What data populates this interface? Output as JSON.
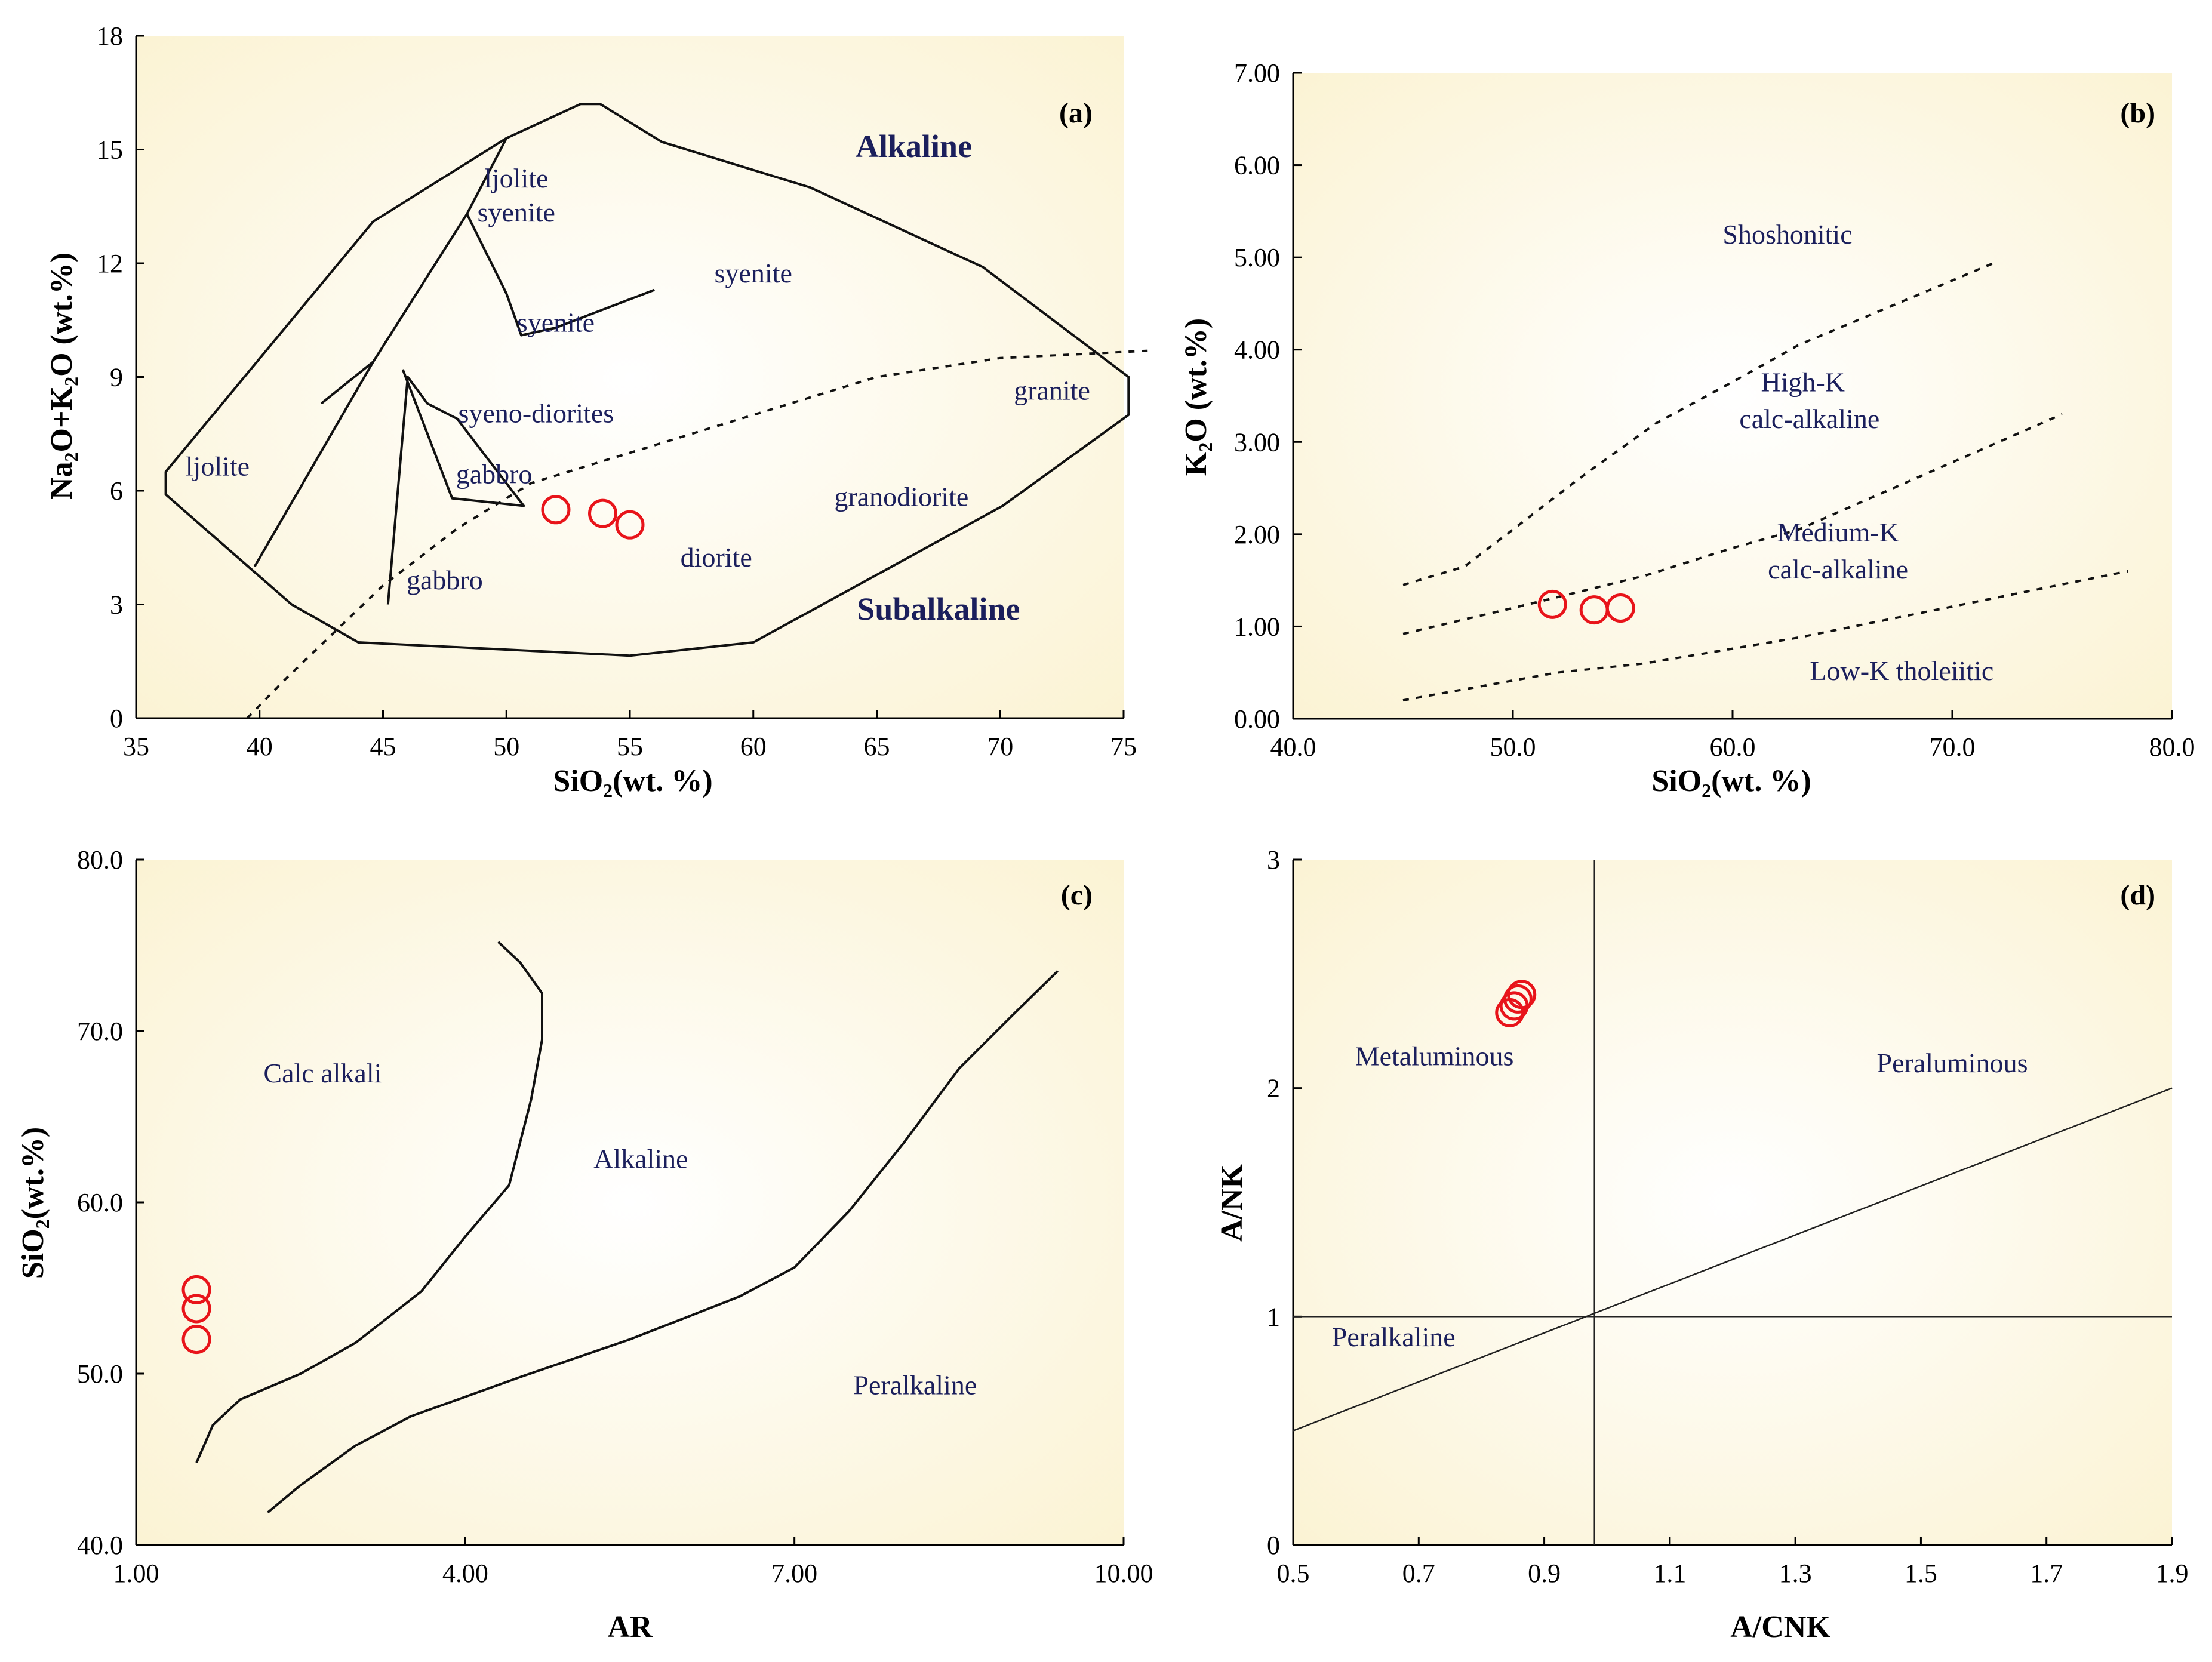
{
  "colors": {
    "plot_bg": "#fbf5dc",
    "plot_center": "#ffffff",
    "sample": "#e8141a",
    "label": "#1b1f5c"
  },
  "chart_data": [
    {
      "id": "a",
      "type": "scatter",
      "panel_label": "(a)",
      "xlabel": "SiO",
      "xlabel_sub": "2",
      "xlabel_suffix": "(wt. %)",
      "ylabel": "Na",
      "ylabel_sub1": "2",
      "ylabel_mid": "O+K",
      "ylabel_sub2": "2",
      "ylabel_suffix": "O (wt.%)",
      "xlim": [
        35,
        75
      ],
      "ylim": [
        0,
        18
      ],
      "xticks": [
        "35",
        "40",
        "45",
        "50",
        "55",
        "60",
        "65",
        "70",
        "75"
      ],
      "yticks": [
        "0",
        "3",
        "6",
        "9",
        "12",
        "15",
        "18"
      ],
      "points": [
        {
          "x": 52.0,
          "y": 5.5
        },
        {
          "x": 53.9,
          "y": 5.4
        },
        {
          "x": 55.0,
          "y": 5.1
        }
      ],
      "fields": [
        {
          "text": "ljolite",
          "x": 38.3,
          "y": 6.4,
          "big": false
        },
        {
          "text": "ljolite",
          "x": 50.4,
          "y": 14.0,
          "big": false
        },
        {
          "text": "syenite",
          "x": 50.4,
          "y": 13.1,
          "big": false
        },
        {
          "text": "syenite",
          "x": 60.0,
          "y": 11.5,
          "big": false
        },
        {
          "text": "syenite",
          "x": 52.0,
          "y": 10.2,
          "big": false
        },
        {
          "text": "syeno-diorites",
          "x": 51.2,
          "y": 7.8,
          "big": false
        },
        {
          "text": "granite",
          "x": 72.1,
          "y": 8.4,
          "big": false
        },
        {
          "text": "gabbro",
          "x": 49.5,
          "y": 6.2,
          "big": false
        },
        {
          "text": "granodiorite",
          "x": 66.0,
          "y": 5.6,
          "big": false
        },
        {
          "text": "diorite",
          "x": 58.5,
          "y": 4.0,
          "big": false
        },
        {
          "text": "gabbro",
          "x": 47.5,
          "y": 3.4,
          "big": false
        },
        {
          "text": "Alkaline",
          "x": 66.5,
          "y": 14.8,
          "big": true
        },
        {
          "text": "Subalkaline",
          "x": 67.5,
          "y": 2.6,
          "big": true
        }
      ],
      "boundary_lines": [
        [
          [
            41.3,
            3.0
          ],
          [
            36.2,
            5.9
          ],
          [
            36.2,
            6.5
          ],
          [
            44.6,
            13.1
          ],
          [
            50.0,
            15.3
          ],
          [
            53.0,
            16.2
          ],
          [
            53.8,
            16.2
          ],
          [
            56.3,
            15.2
          ],
          [
            62.3,
            14.0
          ],
          [
            69.3,
            11.9
          ],
          [
            75.2,
            9.0
          ],
          [
            75.2,
            8.0
          ],
          [
            70.1,
            5.6
          ],
          [
            60.0,
            2.0
          ],
          [
            55.0,
            1.65
          ],
          [
            44.0,
            2.0
          ],
          [
            41.3,
            3.0
          ]
        ],
        [
          [
            39.8,
            4.0
          ],
          [
            44.6,
            9.4
          ],
          [
            44.6,
            9.4
          ],
          [
            48.4,
            13.3
          ],
          [
            50.0,
            15.3
          ]
        ],
        [
          [
            44.6,
            9.4
          ],
          [
            42.5,
            8.3
          ]
        ],
        [
          [
            48.4,
            13.3
          ],
          [
            50.0,
            11.2
          ],
          [
            50.6,
            10.1
          ],
          [
            52.0,
            10.3
          ],
          [
            56.0,
            11.3
          ]
        ],
        [
          [
            45.2,
            3.0
          ],
          [
            46.0,
            9.0
          ],
          [
            46.8,
            8.3
          ],
          [
            48.0,
            7.9
          ],
          [
            50.7,
            5.6
          ],
          [
            47.8,
            5.8
          ],
          [
            45.8,
            9.2
          ]
        ],
        [
          [
            43.0,
            3.0
          ],
          [
            43.0,
            3.0
          ]
        ]
      ],
      "dashed_line": [
        [
          39.5,
          0.0
        ],
        [
          41.0,
          1.0
        ],
        [
          45.0,
          3.5
        ],
        [
          48.0,
          5.0
        ],
        [
          51.0,
          6.2
        ],
        [
          55.0,
          7.0
        ],
        [
          60.0,
          8.0
        ],
        [
          65.0,
          9.0
        ],
        [
          70.0,
          9.5
        ],
        [
          76.2,
          9.7
        ]
      ]
    },
    {
      "id": "b",
      "type": "scatter",
      "panel_label": "(b)",
      "xlabel": "SiO",
      "xlabel_sub": "2",
      "xlabel_suffix": "(wt. %)",
      "ylabel": "K",
      "ylabel_sub1": "2",
      "ylabel_mid": "O (wt.%)",
      "xlim": [
        40,
        80
      ],
      "ylim": [
        0,
        7
      ],
      "xticks": [
        "40.0",
        "50.0",
        "60.0",
        "70.0",
        "80.0"
      ],
      "yticks": [
        "0.00",
        "1.00",
        "2.00",
        "3.00",
        "4.00",
        "5.00",
        "6.00",
        "7.00"
      ],
      "points": [
        {
          "x": 51.8,
          "y": 1.24
        },
        {
          "x": 53.7,
          "y": 1.18
        },
        {
          "x": 54.9,
          "y": 1.2
        }
      ],
      "fields": [
        {
          "text": "Shoshonitic",
          "x": 62.5,
          "y": 5.15
        },
        {
          "text": "High-K",
          "x": 63.2,
          "y": 3.55
        },
        {
          "text": "calc-alkaline",
          "x": 63.5,
          "y": 3.15
        },
        {
          "text": "Medium-K",
          "x": 64.8,
          "y": 1.92
        },
        {
          "text": "calc-alkaline",
          "x": 64.8,
          "y": 1.52
        },
        {
          "text": "Low-K tholeiitic",
          "x": 67.7,
          "y": 0.42
        }
      ],
      "dashed_lines": [
        [
          [
            45,
            1.45
          ],
          [
            47.8,
            1.65
          ],
          [
            50,
            2.05
          ],
          [
            53,
            2.6
          ],
          [
            56.5,
            3.2
          ],
          [
            60,
            3.65
          ],
          [
            63,
            4.05
          ],
          [
            72,
            4.95
          ]
        ],
        [
          [
            45,
            0.92
          ],
          [
            50,
            1.2
          ],
          [
            56,
            1.55
          ],
          [
            60,
            1.85
          ],
          [
            63,
            2.05
          ],
          [
            75,
            3.3
          ]
        ],
        [
          [
            45,
            0.2
          ],
          [
            52,
            0.5
          ],
          [
            56,
            0.6
          ],
          [
            63,
            0.88
          ],
          [
            78,
            1.6
          ]
        ]
      ]
    },
    {
      "id": "c",
      "type": "scatter",
      "panel_label": "(c)",
      "xlabel": "AR",
      "ylabel": "SiO",
      "ylabel_sub1": "2",
      "ylabel_mid": "(wt.%)",
      "xlim": [
        1,
        10
      ],
      "ylim": [
        40,
        80
      ],
      "xticks": [
        "1.00",
        "4.00",
        "7.00",
        "10.00"
      ],
      "yticks": [
        "40.0",
        "50.0",
        "60.0",
        "70.0",
        "80.0"
      ],
      "points": [
        {
          "x": 1.55,
          "y": 52.0
        },
        {
          "x": 1.55,
          "y": 53.8
        },
        {
          "x": 1.55,
          "y": 54.9
        }
      ],
      "fields": [
        {
          "text": "Calc alkali",
          "x": 2.7,
          "y": 67.0
        },
        {
          "text": "Alkaline",
          "x": 5.6,
          "y": 62.0
        },
        {
          "text": "Peralkaline",
          "x": 8.1,
          "y": 48.8
        }
      ],
      "curves": [
        [
          [
            1.55,
            44.8
          ],
          [
            1.7,
            47.0
          ],
          [
            1.95,
            48.5
          ],
          [
            2.5,
            50.0
          ],
          [
            3.0,
            51.8
          ],
          [
            3.6,
            54.8
          ],
          [
            4.0,
            58.0
          ],
          [
            4.4,
            61.0
          ],
          [
            4.6,
            66.0
          ],
          [
            4.7,
            69.5
          ],
          [
            4.7,
            72.2
          ],
          [
            4.5,
            74.0
          ],
          [
            4.3,
            75.2
          ]
        ],
        [
          [
            2.2,
            41.9
          ],
          [
            2.5,
            43.5
          ],
          [
            3.0,
            45.8
          ],
          [
            3.5,
            47.5
          ],
          [
            4.5,
            49.8
          ],
          [
            5.5,
            52.0
          ],
          [
            6.5,
            54.5
          ],
          [
            7.0,
            56.2
          ],
          [
            7.5,
            59.5
          ],
          [
            8.0,
            63.5
          ],
          [
            8.5,
            67.8
          ],
          [
            9.0,
            71.0
          ],
          [
            9.4,
            73.5
          ]
        ]
      ]
    },
    {
      "id": "d",
      "type": "scatter",
      "panel_label": "(d)",
      "xlabel": "A/CNK",
      "ylabel": "A/NK",
      "xlim": [
        0.5,
        1.9
      ],
      "ylim": [
        0,
        3
      ],
      "xticks": [
        "0.5",
        "0.7",
        "0.9",
        "1.1",
        "1.3",
        "1.5",
        "1.7",
        "1.9"
      ],
      "yticks": [
        "0",
        "1",
        "2",
        "3"
      ],
      "points": [
        {
          "x": 0.845,
          "y": 2.33
        },
        {
          "x": 0.852,
          "y": 2.36
        },
        {
          "x": 0.858,
          "y": 2.39
        },
        {
          "x": 0.864,
          "y": 2.41
        }
      ],
      "fields": [
        {
          "text": "Metaluminous",
          "x": 0.725,
          "y": 2.1
        },
        {
          "text": "Peraluminous",
          "x": 1.55,
          "y": 2.07
        },
        {
          "text": "Peralkaline",
          "x": 0.66,
          "y": 0.87
        }
      ],
      "lines": [
        [
          [
            0.98,
            0
          ],
          [
            0.98,
            3
          ]
        ],
        [
          [
            0.5,
            1
          ],
          [
            1.9,
            1
          ]
        ],
        [
          [
            0.5,
            0.5
          ],
          [
            1.9,
            2.0
          ]
        ]
      ]
    }
  ]
}
